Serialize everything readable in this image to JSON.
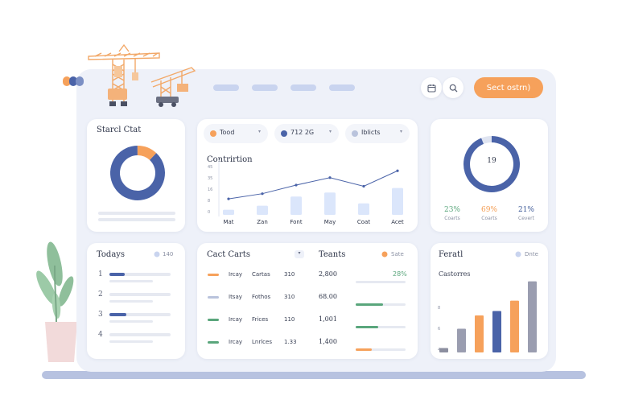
{
  "header": {
    "cta_label": "Sect ostrn)",
    "icons": [
      "calendar-icon",
      "search-icon"
    ]
  },
  "card_start": {
    "title": "Starcl Ctat",
    "chart_data": {
      "type": "pie",
      "values": [
        88,
        12
      ],
      "colors": [
        "#4a63a8",
        "#f6a15b"
      ]
    }
  },
  "chips": [
    {
      "label": "Tood",
      "sub": "",
      "dot": "#f6a15b"
    },
    {
      "label": "712 2G",
      "sub": "",
      "dot": "#4a63a8"
    },
    {
      "label": "Iblicts",
      "sub": "",
      "dot": "#b9c3dc"
    }
  ],
  "construction": {
    "title": "Contrirtion",
    "chart_data": {
      "type": "bar",
      "categories": [
        "Mat",
        "Zan",
        "Font",
        "May",
        "Coat",
        "Acet"
      ],
      "values": [
        9,
        16,
        32,
        39,
        20,
        47
      ],
      "line_values": [
        28,
        37,
        52,
        65,
        50,
        77
      ],
      "yticks": [
        "45",
        "35",
        "16",
        "8",
        "0"
      ],
      "ylim": [
        0,
        90
      ]
    }
  },
  "donut_card": {
    "center_value": "19",
    "center_sub": "",
    "chart_data": {
      "type": "pie",
      "values": [
        94,
        6
      ],
      "colors": [
        "#4a63a8",
        "#dfe4f1"
      ]
    },
    "stats": [
      {
        "value": "23%",
        "label": "Coarts",
        "color": "#5aa67c"
      },
      {
        "value": "69%",
        "label": "Coarts",
        "color": "#f39a4e"
      },
      {
        "value": "21%",
        "label": "Cevert",
        "color": "#3f5b98"
      }
    ]
  },
  "todays": {
    "title": "Todays",
    "badge": "140",
    "items": [
      {
        "num": "1",
        "fill": 0.25,
        "color": "#4a63a8"
      },
      {
        "num": "2",
        "fill": 0.0,
        "color": "#4a63a8"
      },
      {
        "num": "3",
        "fill": 0.28,
        "color": "#4a63a8"
      },
      {
        "num": "4",
        "fill": 0.0,
        "color": "#4a63a8"
      }
    ]
  },
  "table": {
    "title_left": "Cact Carts",
    "title_right": "Teants",
    "badge": "Sate",
    "header_value": "28%",
    "rows": [
      {
        "c1": "Ircay",
        "c2": "Cartas",
        "c3": "310",
        "c4": "2,800",
        "marker": "#f6a15b",
        "bar": 0.0,
        "bar_color": "#5aa67c"
      },
      {
        "c1": "Itsay",
        "c2": "Fothos",
        "c3": "310",
        "c4": "68.00",
        "marker": "#b9c3dc",
        "bar": 0.55,
        "bar_color": "#5aa67c"
      },
      {
        "c1": "Ircay",
        "c2": "Frices",
        "c3": "110",
        "c4": "1,001",
        "marker": "#5aa67c",
        "bar": 0.45,
        "bar_color": "#5aa67c"
      },
      {
        "c1": "Ircay",
        "c2": "Lnrlces",
        "c3": "1.33",
        "c4": "1,400",
        "marker": "#5aa67c",
        "bar": 0.32,
        "bar_color": "#f6a15b"
      }
    ]
  },
  "forecast": {
    "title": "Feratl",
    "badge": "Dnte",
    "subtitle": "Castorres",
    "chart_data": {
      "type": "bar",
      "categories": [
        "",
        "",
        "",
        "",
        "",
        ""
      ],
      "values": [
        6,
        32,
        50,
        56,
        70,
        96
      ],
      "colors": [
        "#8c8fa0",
        "#9a9db0",
        "#f6a15b",
        "#4a63a8",
        "#f6a15b",
        "#9a9db0"
      ],
      "yticks": [
        "8",
        "6",
        "4",
        "0"
      ],
      "ylim": [
        0,
        100
      ]
    }
  }
}
